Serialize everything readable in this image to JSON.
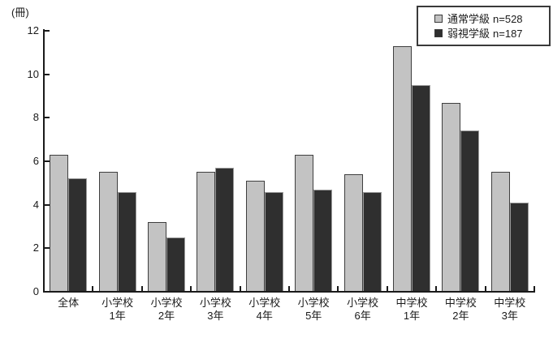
{
  "chart_data": {
    "type": "bar",
    "unit_label": "(冊)",
    "ylim": [
      0,
      12
    ],
    "yticks": [
      0,
      2,
      4,
      6,
      8,
      10,
      12
    ],
    "grid": false,
    "legend_position": "top-right",
    "categories": [
      [
        "全体",
        ""
      ],
      [
        "小学校",
        "1年"
      ],
      [
        "小学校",
        "2年"
      ],
      [
        "小学校",
        "3年"
      ],
      [
        "小学校",
        "4年"
      ],
      [
        "小学校",
        "5年"
      ],
      [
        "小学校",
        "6年"
      ],
      [
        "中学校",
        "1年"
      ],
      [
        "中学校",
        "2年"
      ],
      [
        "中学校",
        "3年"
      ]
    ],
    "series": [
      {
        "name": "通常学級",
        "n": "n=528",
        "color": "#c3c3c3",
        "border": "#3f3f3f",
        "values": [
          6.3,
          5.5,
          3.2,
          5.5,
          5.1,
          6.3,
          5.4,
          11.3,
          8.7,
          5.5
        ]
      },
      {
        "name": "弱視学級",
        "n": "n=187",
        "color": "#2f2f2f",
        "border": "#9c9c9c",
        "values": [
          5.2,
          4.6,
          2.5,
          5.7,
          4.6,
          4.7,
          4.6,
          9.5,
          7.4,
          4.1
        ]
      }
    ]
  },
  "colors": {
    "axis": "#1a1a1a",
    "background": "#ffffff",
    "legend_border": "#3a3a3a"
  }
}
